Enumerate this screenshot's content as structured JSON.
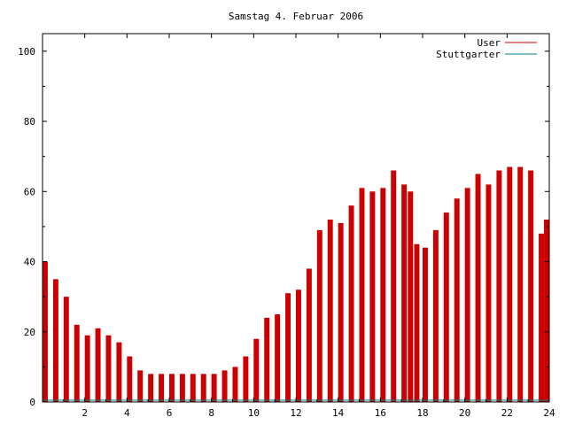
{
  "chart_data": {
    "type": "bar",
    "title": "Samstag 4. Februar 2006",
    "xlim": [
      0,
      24
    ],
    "ylim": [
      0,
      105
    ],
    "xticks": [
      2,
      4,
      6,
      8,
      10,
      12,
      14,
      16,
      18,
      20,
      22,
      24
    ],
    "yticks": [
      0,
      20,
      40,
      60,
      80,
      100
    ],
    "legend_position": "top-right",
    "grid": false,
    "series": [
      {
        "name": "User",
        "color": "#cc0000",
        "x": [
          0.0,
          0.5,
          1.0,
          1.5,
          2.0,
          2.5,
          3.0,
          3.5,
          4.0,
          4.5,
          5.0,
          5.5,
          6.0,
          6.5,
          7.0,
          7.5,
          8.0,
          8.5,
          9.0,
          9.5,
          10.0,
          10.5,
          11.0,
          11.5,
          12.0,
          12.5,
          13.0,
          13.5,
          14.0,
          14.5,
          15.0,
          15.5,
          16.0,
          16.5,
          17.0,
          17.3,
          17.6,
          18.0,
          18.5,
          19.0,
          19.5,
          20.0,
          20.5,
          21.0,
          21.5,
          22.0,
          22.5,
          23.0,
          23.5,
          24.0
        ],
        "values": [
          40,
          35,
          30,
          22,
          19,
          21,
          19,
          17,
          13,
          9,
          8,
          8,
          8,
          8,
          8,
          8,
          8,
          9,
          10,
          13,
          18,
          24,
          25,
          31,
          32,
          38,
          49,
          52,
          51,
          56,
          61,
          60,
          61,
          66,
          62,
          60,
          45,
          44,
          49,
          54,
          58,
          61,
          65,
          62,
          66,
          67,
          67,
          66,
          48,
          52
        ]
      },
      {
        "name": "Stuttgarter",
        "color": "#008080",
        "x": [
          0.0,
          24.0
        ],
        "values": [
          0.5,
          0.5
        ]
      }
    ]
  }
}
